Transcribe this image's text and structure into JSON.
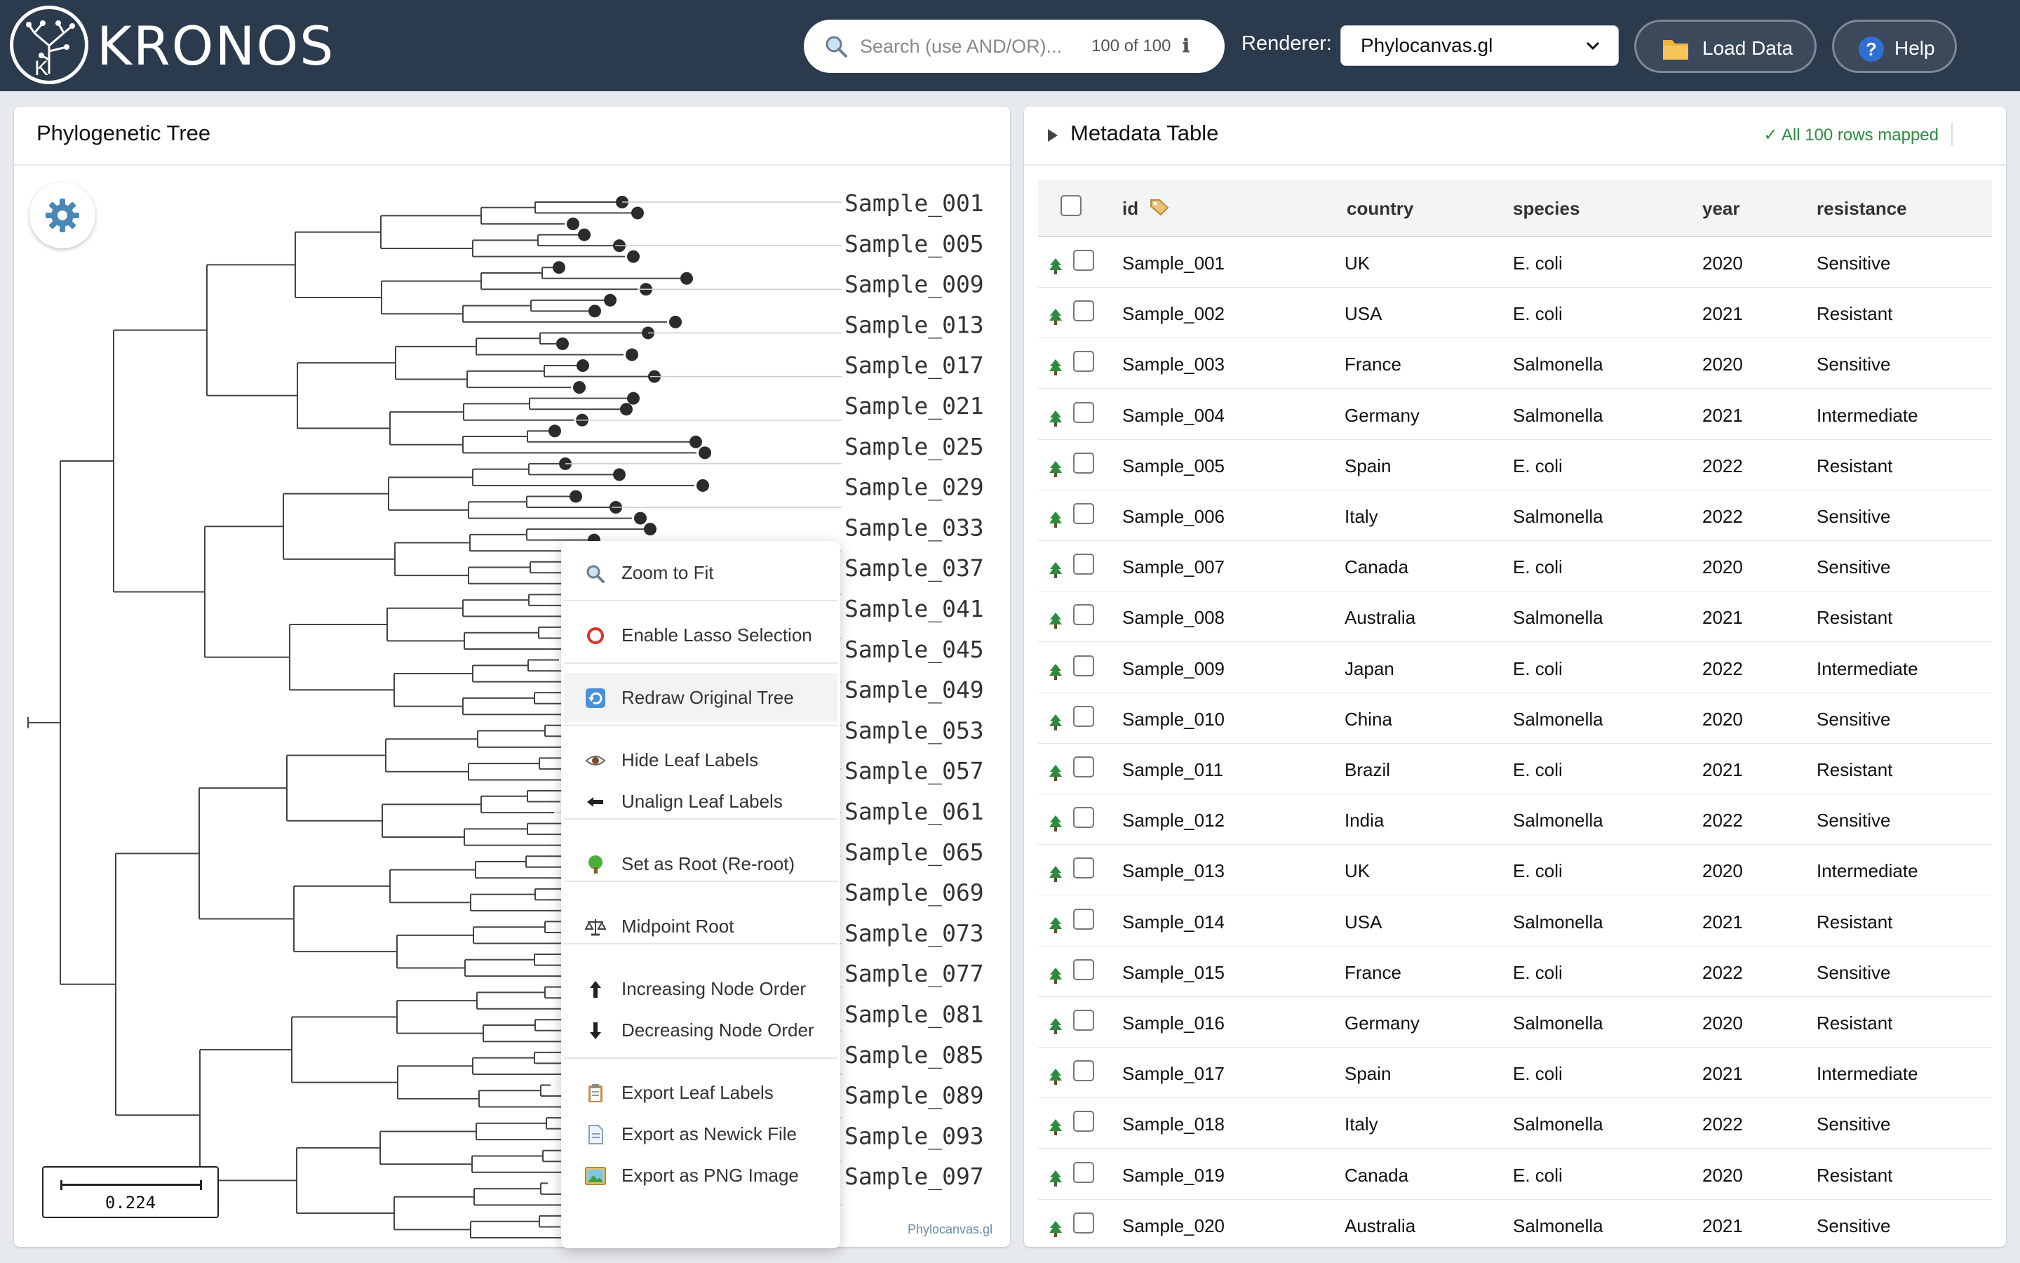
{
  "header": {
    "app_name": "KRONOS",
    "search_placeholder": "Search (use AND/OR)...",
    "search_count": "100 of 100",
    "renderer_label": "Renderer:",
    "renderer_value": "Phylocanvas.gl",
    "load_label": "Load Data",
    "help_label": "Help",
    "colors": {
      "topbar": "#2b3a4d"
    }
  },
  "tree_panel": {
    "title": "Phylogenetic Tree",
    "scale_value": "0.224",
    "watermark": "Phylocanvas.gl",
    "leaf_labels": [
      "Sample_001",
      "Sample_005",
      "Sample_009",
      "Sample_013",
      "Sample_017",
      "Sample_021",
      "Sample_025",
      "Sample_029",
      "Sample_033",
      "Sample_037",
      "Sample_041",
      "Sample_045",
      "Sample_049",
      "Sample_053",
      "Sample_057",
      "Sample_061",
      "Sample_065",
      "Sample_069",
      "Sample_073",
      "Sample_077",
      "Sample_081",
      "Sample_085",
      "Sample_089",
      "Sample_093",
      "Sample_097"
    ]
  },
  "context_menu": {
    "items": [
      {
        "label": "Zoom to Fit",
        "icon": "magnifier-icon"
      },
      {
        "label": "Enable Lasso Selection",
        "icon": "lasso-ring-icon"
      },
      {
        "label": "Redraw Original Tree",
        "icon": "redraw-icon"
      },
      {
        "label": "Hide Leaf Labels",
        "icon": "eye-icon"
      },
      {
        "label": "Unalign Leaf Labels",
        "icon": "left-arrow-icon"
      },
      {
        "label": "Set as Root (Re-root)",
        "icon": "tree-icon"
      },
      {
        "label": "Midpoint Root",
        "icon": "balance-scale-icon"
      },
      {
        "label": "Increasing Node Order",
        "icon": "up-arrow-icon"
      },
      {
        "label": "Decreasing Node Order",
        "icon": "down-arrow-icon"
      },
      {
        "label": "Export Leaf Labels",
        "icon": "clipboard-icon"
      },
      {
        "label": "Export as Newick File",
        "icon": "document-icon"
      },
      {
        "label": "Export as PNG Image",
        "icon": "image-icon"
      }
    ]
  },
  "meta_panel": {
    "title": "Metadata Table",
    "mapped_status": "✓ All 100 rows mapped",
    "columns": [
      "id",
      "country",
      "species",
      "year",
      "resistance"
    ],
    "rows": [
      [
        "Sample_001",
        "UK",
        "E. coli",
        "2020",
        "Sensitive"
      ],
      [
        "Sample_002",
        "USA",
        "E. coli",
        "2021",
        "Resistant"
      ],
      [
        "Sample_003",
        "France",
        "Salmonella",
        "2020",
        "Sensitive"
      ],
      [
        "Sample_004",
        "Germany",
        "Salmonella",
        "2021",
        "Intermediate"
      ],
      [
        "Sample_005",
        "Spain",
        "E. coli",
        "2022",
        "Resistant"
      ],
      [
        "Sample_006",
        "Italy",
        "Salmonella",
        "2022",
        "Sensitive"
      ],
      [
        "Sample_007",
        "Canada",
        "E. coli",
        "2020",
        "Sensitive"
      ],
      [
        "Sample_008",
        "Australia",
        "Salmonella",
        "2021",
        "Resistant"
      ],
      [
        "Sample_009",
        "Japan",
        "E. coli",
        "2022",
        "Intermediate"
      ],
      [
        "Sample_010",
        "China",
        "Salmonella",
        "2020",
        "Sensitive"
      ],
      [
        "Sample_011",
        "Brazil",
        "E. coli",
        "2021",
        "Resistant"
      ],
      [
        "Sample_012",
        "India",
        "Salmonella",
        "2022",
        "Sensitive"
      ],
      [
        "Sample_013",
        "UK",
        "E. coli",
        "2020",
        "Intermediate"
      ],
      [
        "Sample_014",
        "USA",
        "Salmonella",
        "2021",
        "Resistant"
      ],
      [
        "Sample_015",
        "France",
        "E. coli",
        "2022",
        "Sensitive"
      ],
      [
        "Sample_016",
        "Germany",
        "Salmonella",
        "2020",
        "Resistant"
      ],
      [
        "Sample_017",
        "Spain",
        "E. coli",
        "2021",
        "Intermediate"
      ],
      [
        "Sample_018",
        "Italy",
        "Salmonella",
        "2022",
        "Sensitive"
      ],
      [
        "Sample_019",
        "Canada",
        "E. coli",
        "2020",
        "Resistant"
      ],
      [
        "Sample_020",
        "Australia",
        "Salmonella",
        "2021",
        "Sensitive"
      ]
    ]
  }
}
